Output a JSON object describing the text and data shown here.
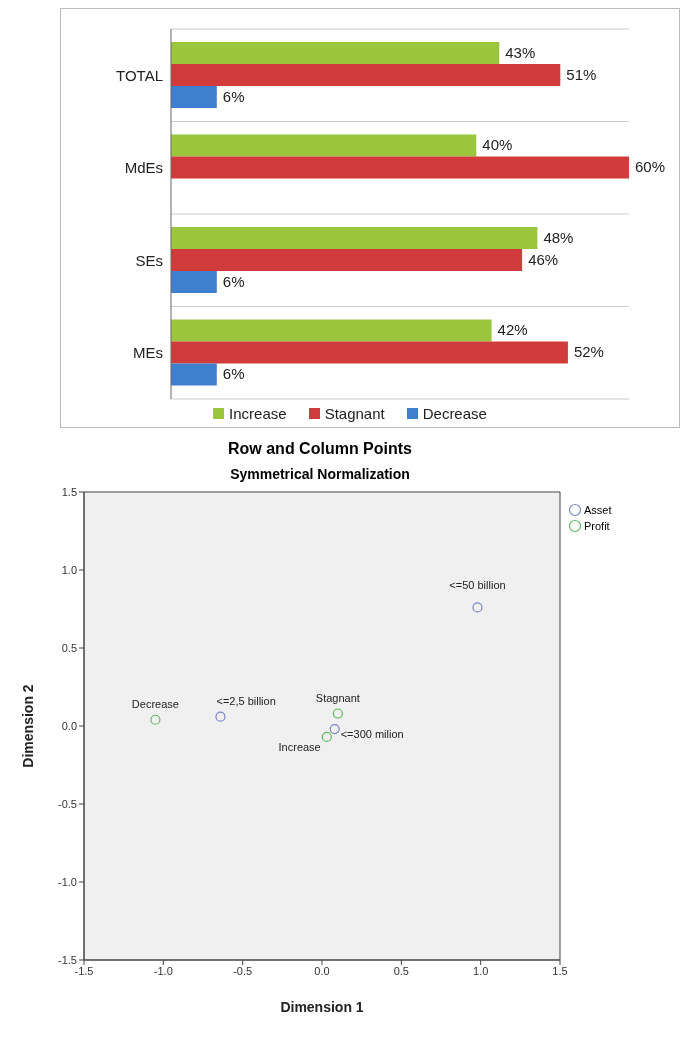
{
  "chart_data": [
    {
      "type": "bar",
      "orientation": "horizontal",
      "categories": [
        "TOTAL",
        "MdEs",
        "SEs",
        "MEs"
      ],
      "series": [
        {
          "name": "Increase",
          "color": "#9bc53d",
          "values": [
            43,
            40,
            48,
            42
          ],
          "value_labels": [
            "43%",
            "40%",
            "48%",
            "42%"
          ]
        },
        {
          "name": "Stagnant",
          "color": "#d13b3b",
          "values": [
            51,
            60,
            46,
            52
          ],
          "value_labels": [
            "51%",
            "60%",
            "46%",
            "52%"
          ]
        },
        {
          "name": "Decrease",
          "color": "#3f7fd0",
          "values": [
            6,
            null,
            6,
            6
          ],
          "value_labels": [
            "6%",
            null,
            "6%",
            "6%"
          ]
        }
      ],
      "grid": "y",
      "legend": "bottom"
    },
    {
      "type": "scatter",
      "title": "Row and Column Points",
      "subtitle": "Symmetrical Normalization",
      "xlabel": "Dimension 1",
      "ylabel": "Dimension 2",
      "series": [
        {
          "name": "Asset",
          "color": "#7b84c8",
          "x": [
            -0.64,
            0.08,
            0.98
          ],
          "values": [
            0.06,
            -0.02,
            0.76
          ]
        },
        {
          "name": "Profit",
          "color": "#5cb85c",
          "x": [
            -1.05,
            0.1,
            0.03
          ],
          "values": [
            0.04,
            0.08,
            -0.07
          ]
        }
      ],
      "xlim": [
        -1.5,
        1.5
      ],
      "ylim": [
        -1.5,
        1.5
      ],
      "xticks": [
        {
          "value": -1.5,
          "label": "-1.5"
        },
        {
          "value": -1,
          "label": "-1.0"
        },
        {
          "value": -0.5,
          "label": "-0.5"
        },
        {
          "value": 0,
          "label": "0.0"
        },
        {
          "value": 0.5,
          "label": "0.5"
        },
        {
          "value": 1,
          "label": "1.0"
        },
        {
          "value": 1.5,
          "label": "1.5"
        }
      ],
      "yticks": [
        {
          "value": -1.5,
          "label": "-1.5"
        },
        {
          "value": -1,
          "label": "-1.0"
        },
        {
          "value": -0.5,
          "label": "-0.5"
        },
        {
          "value": 0,
          "label": "0.0"
        },
        {
          "value": 0.5,
          "label": "0.5"
        },
        {
          "value": 1,
          "label": "1.0"
        },
        {
          "value": 1.5,
          "label": "1.5"
        }
      ],
      "annotations": [
        {
          "text": "Decrease",
          "x": -1.05,
          "y": 0.04
        },
        {
          "text": "<=2,5 billion",
          "x": -0.64,
          "y": 0.06
        },
        {
          "text": "Stagnant",
          "x": 0.1,
          "y": 0.08
        },
        {
          "text": "<=300 milion",
          "x": 0.08,
          "y": -0.02
        },
        {
          "text": "Increase",
          "x": 0.03,
          "y": -0.07
        },
        {
          "text": "<=50 billion",
          "x": 0.98,
          "y": 0.76
        }
      ],
      "legend": "top right",
      "marker": "circle",
      "grid": false
    }
  ]
}
